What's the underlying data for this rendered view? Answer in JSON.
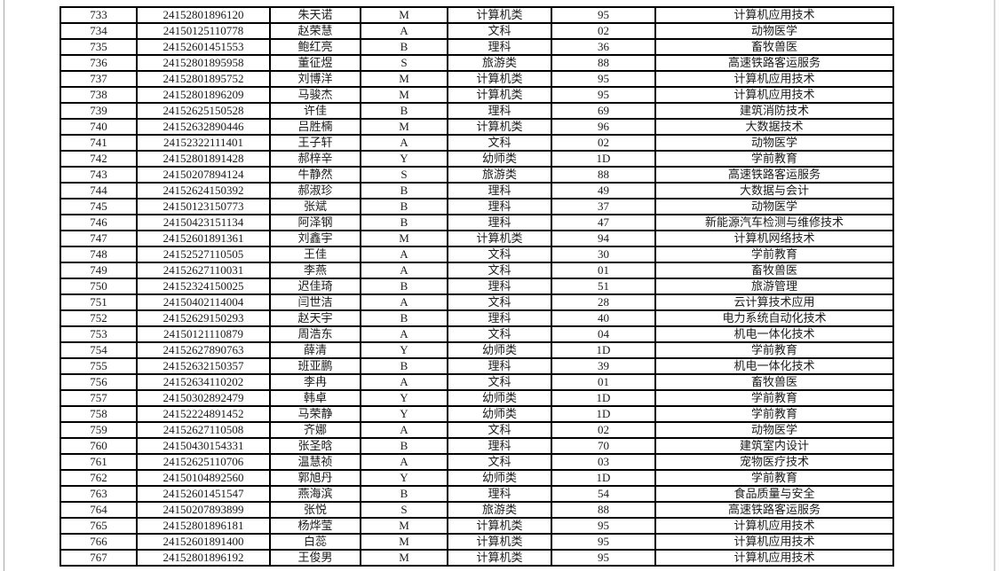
{
  "page": {
    "background_color": "#ffffff",
    "left_page_edge_color": "#a8a8a8",
    "right_page_edge_color": "#d8d8d8",
    "table_border_color": "#000000",
    "text_color": "#1a1a1a"
  },
  "table": {
    "rows": [
      {
        "seq": "733",
        "exam_no": "24152801896120",
        "name": "朱天诺",
        "category_code": "M",
        "category": "计算机类",
        "major_code": "95",
        "major": "计算机应用技术"
      },
      {
        "seq": "734",
        "exam_no": "24150125110778",
        "name": "赵荣慧",
        "category_code": "A",
        "category": "文科",
        "major_code": "02",
        "major": "动物医学"
      },
      {
        "seq": "735",
        "exam_no": "24152601451553",
        "name": "鲍红亮",
        "category_code": "B",
        "category": "理科",
        "major_code": "36",
        "major": "畜牧兽医"
      },
      {
        "seq": "736",
        "exam_no": "24152801895958",
        "name": "董征煜",
        "category_code": "S",
        "category": "旅游类",
        "major_code": "88",
        "major": "高速铁路客运服务"
      },
      {
        "seq": "737",
        "exam_no": "24152801895752",
        "name": "刘博洋",
        "category_code": "M",
        "category": "计算机类",
        "major_code": "95",
        "major": "计算机应用技术"
      },
      {
        "seq": "738",
        "exam_no": "24152801896209",
        "name": "马骏杰",
        "category_code": "M",
        "category": "计算机类",
        "major_code": "95",
        "major": "计算机应用技术"
      },
      {
        "seq": "739",
        "exam_no": "24152625150528",
        "name": "许佳",
        "category_code": "B",
        "category": "理科",
        "major_code": "69",
        "major": "建筑消防技术"
      },
      {
        "seq": "740",
        "exam_no": "24152632890446",
        "name": "吕胜楠",
        "category_code": "M",
        "category": "计算机类",
        "major_code": "96",
        "major": "大数据技术"
      },
      {
        "seq": "741",
        "exam_no": "24152322111401",
        "name": "王子轩",
        "category_code": "A",
        "category": "文科",
        "major_code": "02",
        "major": "动物医学"
      },
      {
        "seq": "742",
        "exam_no": "24152801891428",
        "name": "郝梓辛",
        "category_code": "Y",
        "category": "幼师类",
        "major_code": "1D",
        "major": "学前教育"
      },
      {
        "seq": "743",
        "exam_no": "24150207894124",
        "name": "牛静然",
        "category_code": "S",
        "category": "旅游类",
        "major_code": "88",
        "major": "高速铁路客运服务"
      },
      {
        "seq": "744",
        "exam_no": "24152624150392",
        "name": "郝淑珍",
        "category_code": "B",
        "category": "理科",
        "major_code": "49",
        "major": "大数据与会计"
      },
      {
        "seq": "745",
        "exam_no": "24150123150773",
        "name": "张斌",
        "category_code": "B",
        "category": "理科",
        "major_code": "37",
        "major": "动物医学"
      },
      {
        "seq": "746",
        "exam_no": "24150423151134",
        "name": "阿泽钢",
        "category_code": "B",
        "category": "理科",
        "major_code": "47",
        "major": "新能源汽车检测与维修技术"
      },
      {
        "seq": "747",
        "exam_no": "24152601891361",
        "name": "刘鑫宇",
        "category_code": "M",
        "category": "计算机类",
        "major_code": "94",
        "major": "计算机网络技术"
      },
      {
        "seq": "748",
        "exam_no": "24152527110505",
        "name": "王佳",
        "category_code": "A",
        "category": "文科",
        "major_code": "30",
        "major": "学前教育"
      },
      {
        "seq": "749",
        "exam_no": "24152627110031",
        "name": "李燕",
        "category_code": "A",
        "category": "文科",
        "major_code": "01",
        "major": "畜牧兽医"
      },
      {
        "seq": "750",
        "exam_no": "24152324150025",
        "name": "迟佳琦",
        "category_code": "B",
        "category": "理科",
        "major_code": "51",
        "major": "旅游管理"
      },
      {
        "seq": "751",
        "exam_no": "24150402114004",
        "name": "闫世洁",
        "category_code": "A",
        "category": "文科",
        "major_code": "28",
        "major": "云计算技术应用"
      },
      {
        "seq": "752",
        "exam_no": "24152629150293",
        "name": "赵天宇",
        "category_code": "B",
        "category": "理科",
        "major_code": "40",
        "major": "电力系统自动化技术"
      },
      {
        "seq": "753",
        "exam_no": "24150121110879",
        "name": "周浩东",
        "category_code": "A",
        "category": "文科",
        "major_code": "04",
        "major": "机电一体化技术"
      },
      {
        "seq": "754",
        "exam_no": "24152627890763",
        "name": "薛清",
        "category_code": "Y",
        "category": "幼师类",
        "major_code": "1D",
        "major": "学前教育"
      },
      {
        "seq": "755",
        "exam_no": "24152632150357",
        "name": "班亚鹏",
        "category_code": "B",
        "category": "理科",
        "major_code": "39",
        "major": "机电一体化技术"
      },
      {
        "seq": "756",
        "exam_no": "24152634110202",
        "name": "李冉",
        "category_code": "A",
        "category": "文科",
        "major_code": "01",
        "major": "畜牧兽医"
      },
      {
        "seq": "757",
        "exam_no": "24150302892479",
        "name": "韩卓",
        "category_code": "Y",
        "category": "幼师类",
        "major_code": "1D",
        "major": "学前教育"
      },
      {
        "seq": "758",
        "exam_no": "24152224891452",
        "name": "马荣静",
        "category_code": "Y",
        "category": "幼师类",
        "major_code": "1D",
        "major": "学前教育"
      },
      {
        "seq": "759",
        "exam_no": "24152627110508",
        "name": "齐娜",
        "category_code": "A",
        "category": "文科",
        "major_code": "02",
        "major": "动物医学"
      },
      {
        "seq": "760",
        "exam_no": "24150430154331",
        "name": "张圣晗",
        "category_code": "B",
        "category": "理科",
        "major_code": "70",
        "major": "建筑室内设计"
      },
      {
        "seq": "761",
        "exam_no": "24152625110706",
        "name": "温慧祯",
        "category_code": "A",
        "category": "文科",
        "major_code": "03",
        "major": "宠物医疗技术"
      },
      {
        "seq": "762",
        "exam_no": "24150104892560",
        "name": "郭旭丹",
        "category_code": "Y",
        "category": "幼师类",
        "major_code": "1D",
        "major": "学前教育"
      },
      {
        "seq": "763",
        "exam_no": "24152601451547",
        "name": "燕海滨",
        "category_code": "B",
        "category": "理科",
        "major_code": "54",
        "major": "食品质量与安全"
      },
      {
        "seq": "764",
        "exam_no": "24150207893899",
        "name": "张悦",
        "category_code": "S",
        "category": "旅游类",
        "major_code": "88",
        "major": "高速铁路客运服务"
      },
      {
        "seq": "765",
        "exam_no": "24152801896181",
        "name": "杨烨莹",
        "category_code": "M",
        "category": "计算机类",
        "major_code": "95",
        "major": "计算机应用技术"
      },
      {
        "seq": "766",
        "exam_no": "24152601891400",
        "name": "白蕊",
        "category_code": "M",
        "category": "计算机类",
        "major_code": "95",
        "major": "计算机应用技术"
      },
      {
        "seq": "767",
        "exam_no": "24152801896192",
        "name": "王俊男",
        "category_code": "M",
        "category": "计算机类",
        "major_code": "95",
        "major": "计算机应用技术"
      }
    ]
  }
}
